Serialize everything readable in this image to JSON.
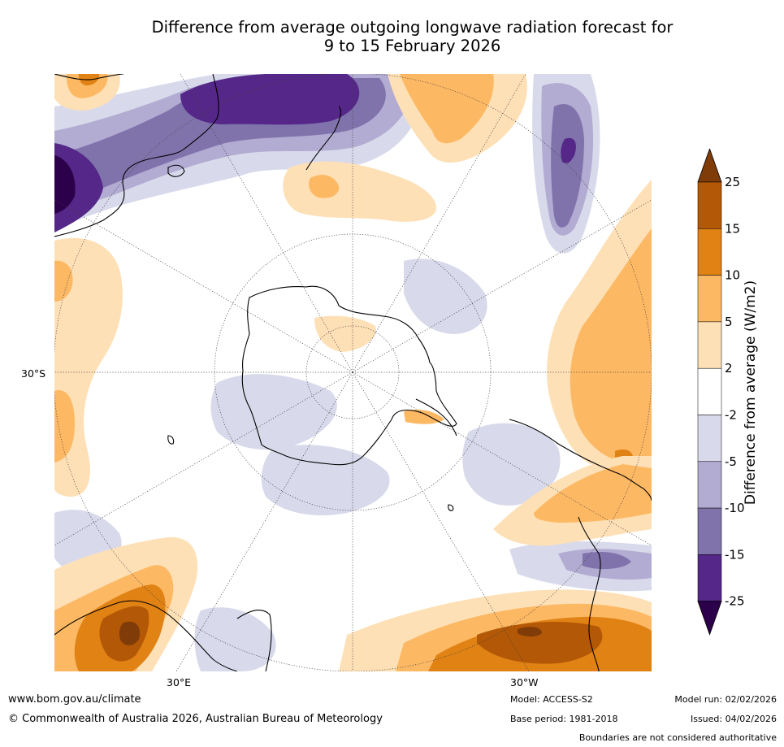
{
  "title": {
    "line1": "Difference from average outgoing longwave radiation forecast for",
    "line2": "9 to 15 February 2026"
  },
  "map": {
    "projection": "south-polar-stereographic",
    "labels": {
      "lat_left": "30°S",
      "lon_bottom_left": "30°E",
      "lon_bottom_right": "30°W"
    }
  },
  "colorbar": {
    "title": "Difference from average (W/m2)",
    "ticks": [
      "25",
      "15",
      "10",
      "5",
      "2",
      "-2",
      "-5",
      "-10",
      "-15",
      "-25"
    ],
    "bins": [
      {
        "range": ">25",
        "color": "#7f3b08"
      },
      {
        "range": "15 to 25",
        "color": "#b35806"
      },
      {
        "range": "10 to 15",
        "color": "#e08214"
      },
      {
        "range": "5 to 10",
        "color": "#fdb863"
      },
      {
        "range": "2 to 5",
        "color": "#fee0b6"
      },
      {
        "range": "-2 to 2",
        "color": "#ffffff"
      },
      {
        "range": "-5 to -2",
        "color": "#d8daeb"
      },
      {
        "range": "-10 to -5",
        "color": "#b2abd2"
      },
      {
        "range": "-15 to -10",
        "color": "#8073ac"
      },
      {
        "range": "-25 to -15",
        "color": "#542788"
      },
      {
        "range": "<-25",
        "color": "#2d004b"
      }
    ]
  },
  "footer": {
    "website": "www.bom.gov.au/climate",
    "copyright": "© Commonwealth of Australia 2026, Australian Bureau of Meteorology",
    "model": "Model: ACCESS-S2",
    "base_period": "Base period: 1981-2018",
    "model_run": "Model run: 02/02/2026",
    "issued": "Issued: 04/02/2026",
    "disclaimer": "Boundaries are not considered authoritative"
  }
}
